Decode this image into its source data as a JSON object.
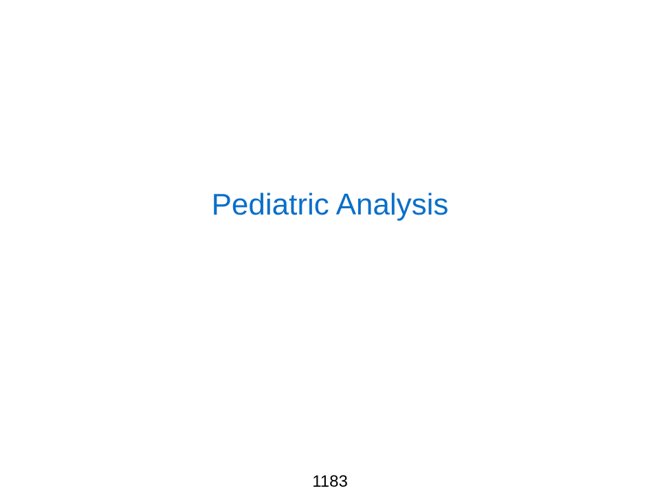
{
  "slide": {
    "title": "Pediatric Analysis",
    "page_number": "1183",
    "colors": {
      "title": "#0a6fc9",
      "page_number": "#000000",
      "background": "#ffffff"
    }
  }
}
